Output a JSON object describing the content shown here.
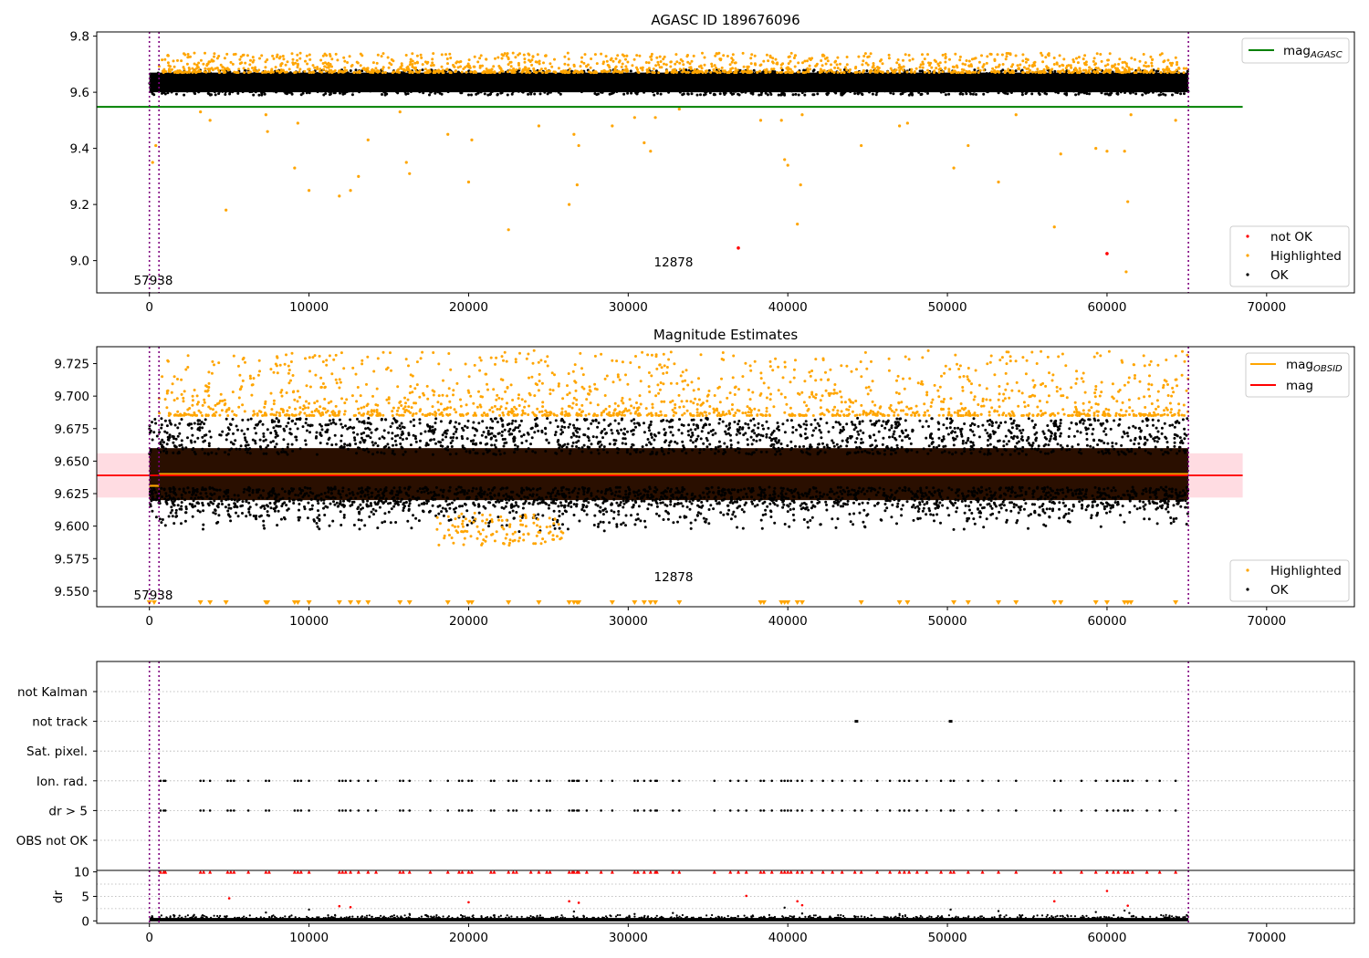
{
  "colors": {
    "ok": "#000000",
    "highlighted": "#ffa500",
    "not_ok": "#ff0000",
    "mag_agasc_line": "#008000",
    "mag_obsid_line": "#ffa500",
    "mag_line": "#ff0000",
    "mag_band": "#ffc0cb",
    "boundary_line": "#800080",
    "grid": "#b0b0b0"
  },
  "chart_data": [
    {
      "type": "scatter",
      "title": "AGASC ID 189676096",
      "xlim": [
        -3300,
        75500
      ],
      "ylim": [
        8.885,
        9.815
      ],
      "xticks": [
        "0",
        "10000",
        "20000",
        "30000",
        "40000",
        "50000",
        "60000",
        "70000"
      ],
      "yticks": [
        "9.0",
        "9.2",
        "9.4",
        "9.6",
        "9.8"
      ],
      "obsid_boundaries": [
        0,
        600,
        65100
      ],
      "obsid_labels": [
        "57938",
        "12878"
      ],
      "mag_agasc": 9.548,
      "mag_agasc_xrange": [
        -3300,
        68500
      ],
      "series": [
        {
          "name": "not OK",
          "points": [
            [
              36900,
              9.045
            ],
            [
              60000,
              9.025
            ]
          ]
        },
        {
          "name": "Highlighted",
          "band": [
            9.69,
            9.74
          ],
          "outliers": [
            [
              200,
              9.35
            ],
            [
              400,
              9.41
            ],
            [
              3200,
              9.53
            ],
            [
              3800,
              9.5
            ],
            [
              4800,
              9.18
            ],
            [
              7300,
              9.52
            ],
            [
              7400,
              9.46
            ],
            [
              9100,
              9.33
            ],
            [
              9300,
              9.49
            ],
            [
              10000,
              9.25
            ],
            [
              11900,
              9.23
            ],
            [
              12600,
              9.25
            ],
            [
              13100,
              9.3
            ],
            [
              13700,
              9.43
            ],
            [
              15700,
              9.53
            ],
            [
              16100,
              9.35
            ],
            [
              16300,
              9.31
            ],
            [
              18700,
              9.45
            ],
            [
              20000,
              9.28
            ],
            [
              20200,
              9.43
            ],
            [
              22500,
              9.11
            ],
            [
              24400,
              9.48
            ],
            [
              26300,
              9.2
            ],
            [
              26600,
              9.45
            ],
            [
              26800,
              9.27
            ],
            [
              26900,
              9.41
            ],
            [
              29000,
              9.48
            ],
            [
              30400,
              9.51
            ],
            [
              31000,
              9.42
            ],
            [
              31400,
              9.39
            ],
            [
              31700,
              9.51
            ],
            [
              33200,
              9.54
            ],
            [
              38300,
              9.5
            ],
            [
              39600,
              9.5
            ],
            [
              39800,
              9.36
            ],
            [
              40000,
              9.34
            ],
            [
              40600,
              9.13
            ],
            [
              40800,
              9.27
            ],
            [
              40900,
              9.52
            ],
            [
              44600,
              9.41
            ],
            [
              47000,
              9.48
            ],
            [
              47500,
              9.49
            ],
            [
              50400,
              9.33
            ],
            [
              51300,
              9.41
            ],
            [
              53200,
              9.28
            ],
            [
              54300,
              9.52
            ],
            [
              56700,
              9.12
            ],
            [
              57100,
              9.38
            ],
            [
              59300,
              9.4
            ],
            [
              60000,
              9.39
            ],
            [
              61100,
              9.39
            ],
            [
              61300,
              9.21
            ],
            [
              61500,
              9.52
            ],
            [
              61200,
              8.96
            ],
            [
              64300,
              9.5
            ]
          ]
        },
        {
          "name": "OK",
          "band": [
            9.59,
            9.68
          ]
        }
      ],
      "legend_upper": [
        "mag_AGASC"
      ],
      "legend_lower": [
        "not OK",
        "Highlighted",
        "OK"
      ]
    },
    {
      "type": "scatter",
      "title": "Magnitude Estimates",
      "xlim": [
        -3300,
        75500
      ],
      "ylim": [
        9.538,
        9.738
      ],
      "xticks": [
        "0",
        "10000",
        "20000",
        "30000",
        "40000",
        "50000",
        "60000",
        "70000"
      ],
      "yticks": [
        "9.550",
        "9.575",
        "9.600",
        "9.625",
        "9.650",
        "9.675",
        "9.700",
        "9.725"
      ],
      "obsid_boundaries": [
        0,
        600,
        65100
      ],
      "obsid_labels": [
        "57938",
        "12878"
      ],
      "mag_obsid": [
        {
          "x_range": [
            0,
            600
          ],
          "y": 9.631
        },
        {
          "x_range": [
            600,
            65100
          ],
          "y": 9.64
        }
      ],
      "mag": 9.639,
      "mag_band": [
        9.622,
        9.656
      ],
      "mag_xrange": [
        -3300,
        68500
      ],
      "series": [
        {
          "name": "Highlighted",
          "band": [
            9.685,
            9.735
          ],
          "lower_tail": [
            9.585,
            9.62
          ],
          "clipped_marker_x": [
            0,
            300,
            3200,
            3800,
            4800,
            7300,
            7400,
            9100,
            9300,
            10000,
            11900,
            12600,
            13100,
            13700,
            15700,
            16300,
            18700,
            20000,
            20200,
            22500,
            24400,
            26300,
            26600,
            26800,
            26900,
            29000,
            30400,
            31000,
            31400,
            31700,
            33200,
            38300,
            38500,
            39600,
            39800,
            40000,
            40600,
            40900,
            44600,
            47000,
            47500,
            50400,
            51300,
            53200,
            54300,
            56700,
            57100,
            59300,
            60000,
            61100,
            61300,
            61500,
            64300
          ]
        },
        {
          "name": "OK",
          "band": [
            9.595,
            9.683
          ]
        }
      ],
      "legend_upper": [
        "mag_OBSID",
        "mag"
      ],
      "legend_lower": [
        "Highlighted",
        "OK"
      ]
    },
    {
      "type": "scatter",
      "xlim": [
        -3300,
        75500
      ],
      "ytick_labels": [
        "not Kalman",
        "not track",
        "Sat. pixel.",
        "Ion. rad.",
        "dr > 5",
        "OBS not OK"
      ],
      "obsid_boundaries": [
        0,
        600,
        65100
      ],
      "flags": {
        "not_track_x": [
          44300,
          50200
        ],
        "ion_rad_x": [
          700,
          900,
          1000,
          3200,
          3400,
          3800,
          4900,
          5100,
          5300,
          6200,
          7300,
          7500,
          9100,
          9300,
          9500,
          10000,
          11900,
          12100,
          12300,
          12600,
          13100,
          13700,
          14200,
          15700,
          15900,
          16300,
          17600,
          18700,
          19400,
          19600,
          20000,
          20200,
          21400,
          21600,
          22500,
          22800,
          23000,
          23900,
          24400,
          24900,
          25100,
          26300,
          26500,
          26600,
          26800,
          26900,
          27400,
          28300,
          29000,
          30400,
          30600,
          31000,
          31400,
          31700,
          31800,
          32800,
          33200,
          35400,
          36400,
          36900,
          37400,
          38300,
          38500,
          39000,
          39600,
          39800,
          40000,
          40200,
          40600,
          40900,
          41500,
          42200,
          42800,
          43400,
          44200,
          44600,
          45600,
          46400,
          47000,
          47300,
          47600,
          48100,
          48700,
          49600,
          50200,
          50400,
          51300,
          52200,
          53200,
          54300,
          56700,
          57100,
          58400,
          59300,
          60000,
          60400,
          60700,
          61100,
          61300,
          61600,
          62500,
          63300,
          64300
        ]
      }
    },
    {
      "type": "scatter",
      "xlim": [
        -3300,
        75500
      ],
      "ylim": [
        -0.5,
        10.3
      ],
      "ylabel": "dr",
      "yticks": [
        "0",
        "5",
        "10"
      ],
      "xticks": [
        "0",
        "10000",
        "20000",
        "30000",
        "40000",
        "50000",
        "60000",
        "70000"
      ],
      "obsid_boundaries": [
        0,
        600,
        65100
      ],
      "clip_value": 10,
      "outliers_red": [
        [
          5000,
          4.6
        ],
        [
          11900,
          3.0
        ],
        [
          12600,
          2.8
        ],
        [
          20000,
          3.8
        ],
        [
          26300,
          4.0
        ],
        [
          26900,
          3.7
        ],
        [
          37400,
          5.1
        ],
        [
          40600,
          4.0
        ],
        [
          40900,
          3.2
        ],
        [
          56700,
          4.0
        ],
        [
          60000,
          6.1
        ],
        [
          61300,
          3.1
        ]
      ],
      "outliers_black": [
        [
          2800,
          1.2
        ],
        [
          7300,
          1.7
        ],
        [
          10000,
          2.3
        ],
        [
          16300,
          1.4
        ],
        [
          26600,
          1.9
        ],
        [
          30400,
          1.4
        ],
        [
          32800,
          1.6
        ],
        [
          39800,
          2.7
        ],
        [
          40900,
          1.5
        ],
        [
          47000,
          1.4
        ],
        [
          50200,
          2.3
        ],
        [
          53200,
          2.0
        ],
        [
          59300,
          1.8
        ],
        [
          61100,
          2.1
        ],
        [
          61400,
          1.6
        ]
      ]
    }
  ]
}
